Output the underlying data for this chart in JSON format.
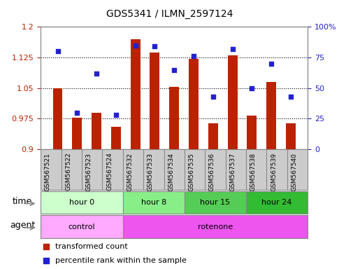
{
  "title": "GDS5341 / ILMN_2597124",
  "samples": [
    "GSM567521",
    "GSM567522",
    "GSM567523",
    "GSM567524",
    "GSM567532",
    "GSM567533",
    "GSM567534",
    "GSM567535",
    "GSM567536",
    "GSM567537",
    "GSM567538",
    "GSM567539",
    "GSM567540"
  ],
  "transformed_count": [
    1.05,
    0.978,
    0.99,
    0.955,
    1.17,
    1.138,
    1.053,
    1.122,
    0.963,
    1.13,
    0.983,
    1.065,
    0.963
  ],
  "percentile_rank": [
    80,
    30,
    62,
    28,
    85,
    84,
    65,
    76,
    43,
    82,
    50,
    70,
    43
  ],
  "ylim_left": [
    0.9,
    1.2
  ],
  "ylim_right": [
    0,
    100
  ],
  "yticks_left": [
    0.9,
    0.975,
    1.05,
    1.125,
    1.2
  ],
  "yticks_right": [
    0,
    25,
    50,
    75,
    100
  ],
  "ytick_labels_left": [
    "0.9",
    "0.975",
    "1.05",
    "1.125",
    "1.2"
  ],
  "ytick_labels_right": [
    "0",
    "25",
    "50",
    "75",
    "100%"
  ],
  "bar_color": "#bb2200",
  "dot_color": "#2222cc",
  "bar_width": 0.5,
  "groups": [
    {
      "label": "hour 0",
      "start": 0,
      "end": 4,
      "color": "#ccffcc"
    },
    {
      "label": "hour 8",
      "start": 4,
      "end": 7,
      "color": "#88ee88"
    },
    {
      "label": "hour 15",
      "start": 7,
      "end": 10,
      "color": "#55cc55"
    },
    {
      "label": "hour 24",
      "start": 10,
      "end": 13,
      "color": "#33bb33"
    }
  ],
  "agents": [
    {
      "label": "control",
      "start": 0,
      "end": 4,
      "color": "#ffaaff"
    },
    {
      "label": "rotenone",
      "start": 4,
      "end": 13,
      "color": "#ee55ee"
    }
  ],
  "time_label": "time",
  "agent_label": "agent",
  "legend_bar": "transformed count",
  "legend_dot": "percentile rank within the sample",
  "bg_color": "#ffffff",
  "tick_label_area_color": "#cccccc",
  "spine_color": "#888888"
}
